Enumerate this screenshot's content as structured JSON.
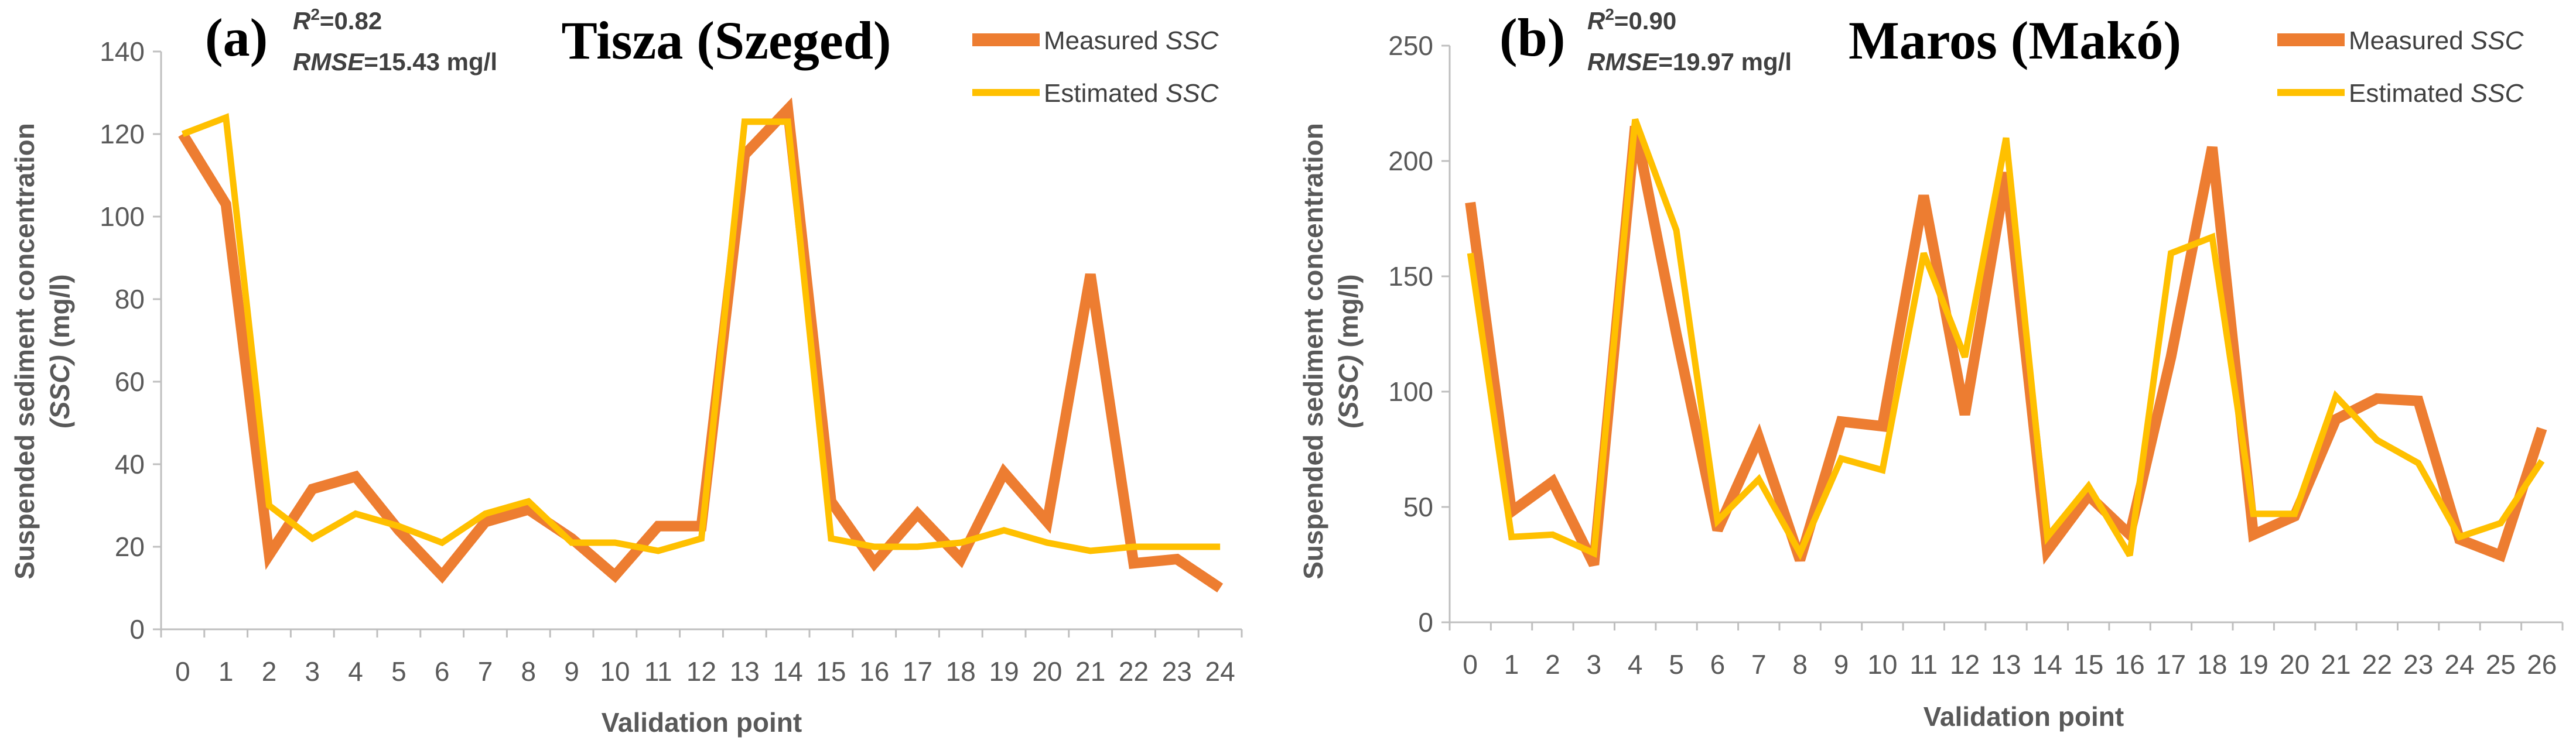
{
  "chart_data": [
    {
      "type": "line",
      "panel_label": "(a)",
      "title": "Tisza (Szeged)",
      "r2_label": "R",
      "r2_sup": "2",
      "r2_value": "=0.82",
      "rmse_label": "RMSE",
      "rmse_value": "=15.43 mg/l",
      "xlabel": "Validation point",
      "ylabel_line1": "Suspended sediment concentration",
      "ylabel_line2_italic": "(SSC)",
      "ylabel_line2_rest": " (mg/l)",
      "ylim": [
        0,
        140
      ],
      "ytick_values": [
        0,
        20,
        40,
        60,
        80,
        100,
        120,
        140
      ],
      "yticks": [
        "0",
        "20",
        "40",
        "60",
        "80",
        "100",
        "120",
        "140"
      ],
      "x": [
        "0",
        "1",
        "2",
        "3",
        "4",
        "5",
        "6",
        "7",
        "8",
        "9",
        "10",
        "11",
        "12",
        "13",
        "14",
        "15",
        "16",
        "17",
        "18",
        "19",
        "20",
        "21",
        "22",
        "23",
        "24"
      ],
      "legend_position": "top-right",
      "series": [
        {
          "name": "Measured SSC",
          "name_prefix": "Measured ",
          "name_italic": "SSC",
          "color": "#ED7D31",
          "values": [
            120,
            103,
            18,
            34,
            37,
            24,
            13,
            26,
            29,
            22,
            13,
            25,
            25,
            115,
            126,
            31,
            16,
            28,
            17,
            38,
            26,
            86,
            16,
            17,
            10
          ]
        },
        {
          "name": "Estimated SSC",
          "name_prefix": "Estimated ",
          "name_italic": "SSC",
          "color": "#FFC000",
          "values": [
            120,
            124,
            30,
            22,
            28,
            25,
            21,
            28,
            31,
            21,
            21,
            19,
            22,
            123,
            123,
            22,
            20,
            20,
            21,
            24,
            21,
            19,
            20,
            20,
            20
          ]
        }
      ]
    },
    {
      "type": "line",
      "panel_label": "(b)",
      "title": "Maros (Makó)",
      "r2_label": "R",
      "r2_sup": "2",
      "r2_value": "=0.90",
      "rmse_label": "RMSE",
      "rmse_value": "=19.97 mg/l",
      "xlabel": "Validation point",
      "ylabel_line1": "Suspended sediment concentration",
      "ylabel_line2_italic": "(SSC)",
      "ylabel_line2_rest": " (mg/l)",
      "ylim": [
        0,
        250
      ],
      "ytick_values": [
        0,
        50,
        100,
        150,
        200,
        250
      ],
      "yticks": [
        "0",
        "50",
        "100",
        "150",
        "200",
        "250"
      ],
      "x": [
        "0",
        "1",
        "2",
        "3",
        "4",
        "5",
        "6",
        "7",
        "8",
        "9",
        "10",
        "11",
        "12",
        "13",
        "14",
        "15",
        "16",
        "17",
        "18",
        "19",
        "20",
        "21",
        "22",
        "23",
        "24",
        "25",
        "26"
      ],
      "legend_position": "top-right",
      "series": [
        {
          "name": "Measured SSC",
          "name_prefix": "Measured ",
          "name_italic": "SSC",
          "color": "#ED7D31",
          "values": [
            182,
            48,
            61,
            25,
            215,
            125,
            40,
            80,
            27,
            87,
            85,
            185,
            90,
            195,
            31,
            55,
            38,
            115,
            206,
            38,
            46,
            88,
            97,
            96,
            36,
            29,
            84
          ]
        },
        {
          "name": "Estimated SSC",
          "name_prefix": "Estimated ",
          "name_italic": "SSC",
          "color": "#FFC000",
          "values": [
            160,
            37,
            38,
            30,
            218,
            170,
            44,
            62,
            30,
            71,
            66,
            160,
            115,
            210,
            37,
            59,
            29,
            160,
            167,
            47,
            47,
            98,
            79,
            69,
            37,
            43,
            70
          ]
        }
      ]
    }
  ]
}
